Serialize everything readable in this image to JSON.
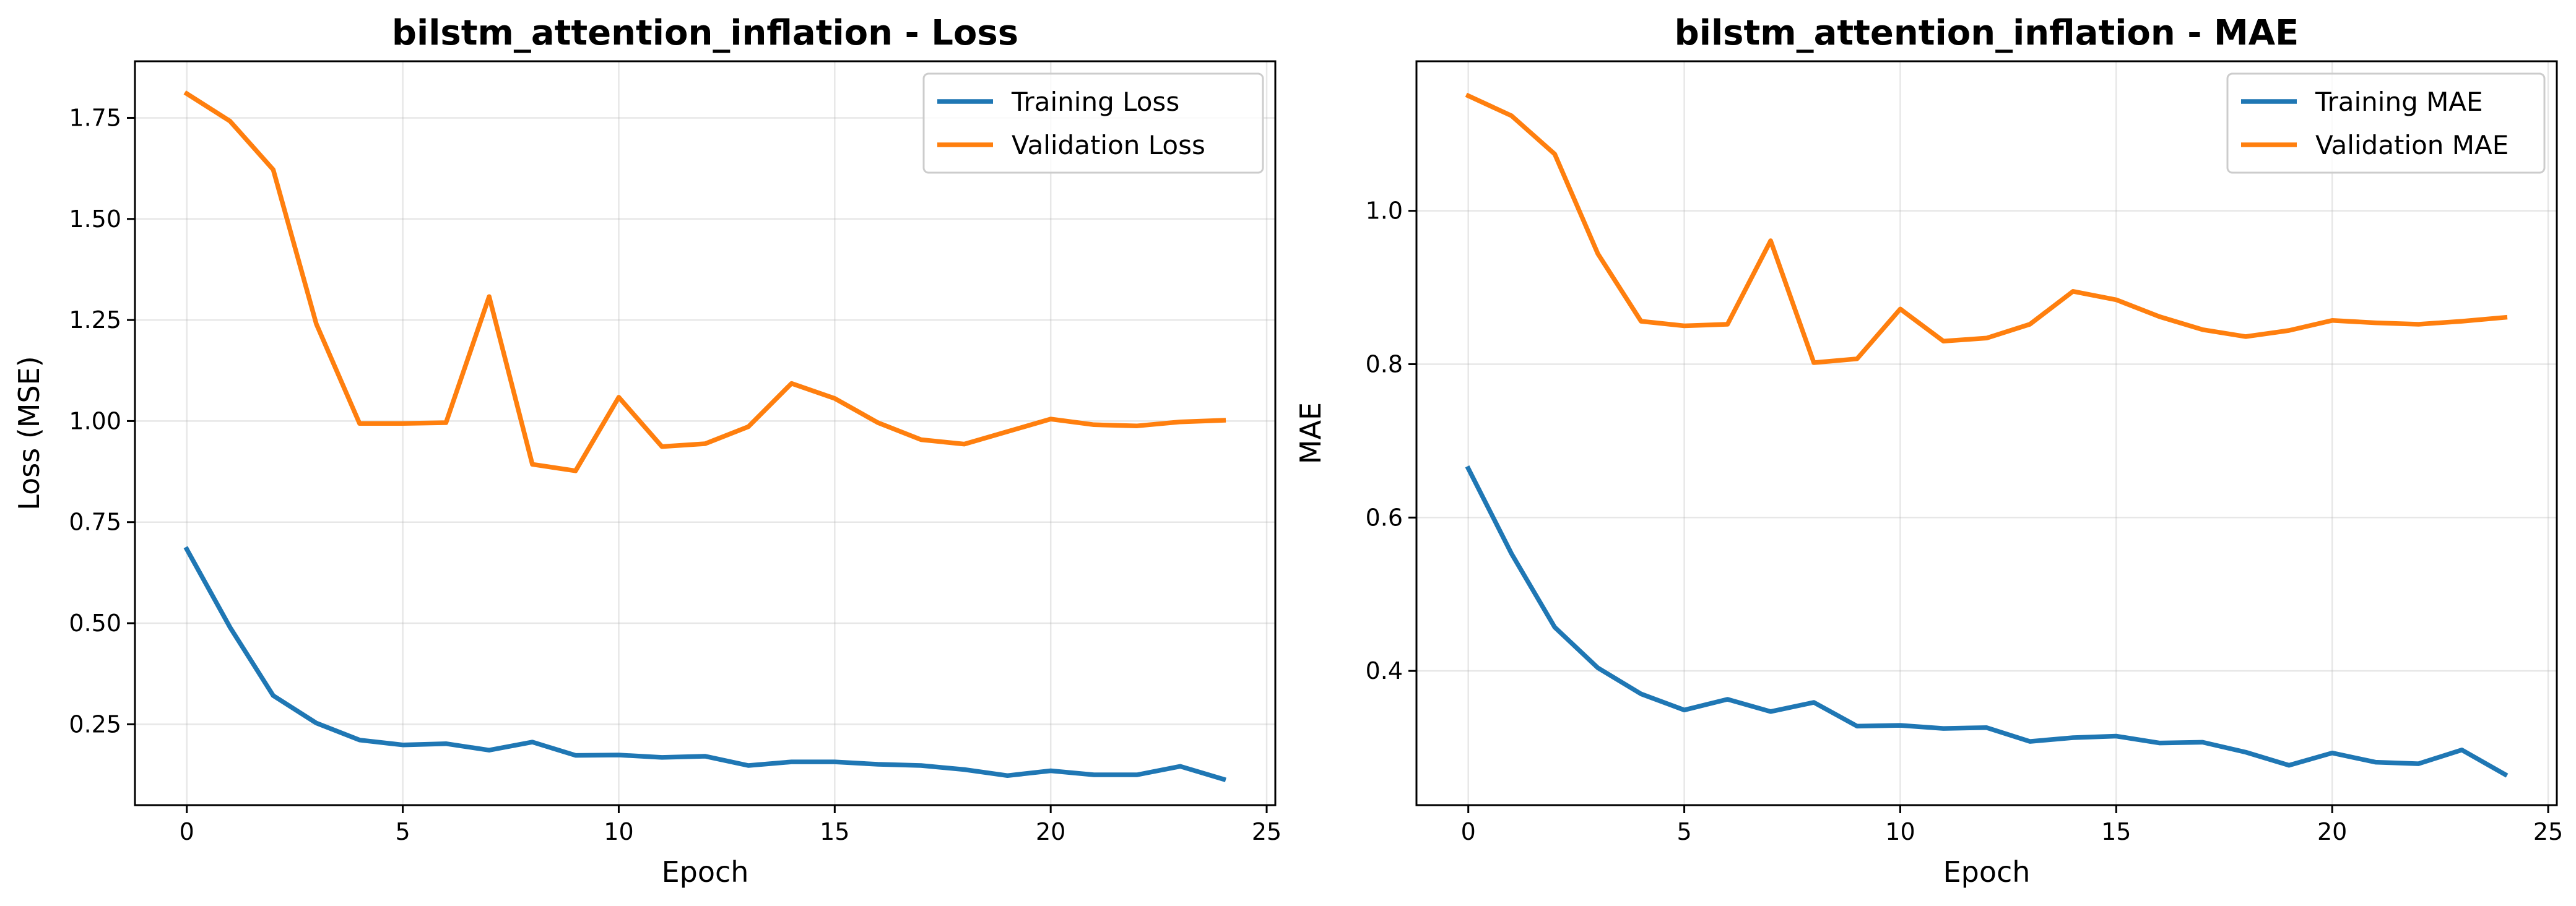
{
  "chart_data": [
    {
      "type": "line",
      "title": "bilstm_attention_inflation - Loss",
      "xlabel": "Epoch",
      "ylabel": "Loss (MSE)",
      "xlim": [
        -1.2,
        25.2
      ],
      "ylim": [
        0.05,
        1.89
      ],
      "xticks": [
        0,
        5,
        10,
        15,
        20,
        25
      ],
      "yticks": [
        0.25,
        0.5,
        0.75,
        1.0,
        1.25,
        1.5,
        1.75
      ],
      "ytick_labels": [
        "0.25",
        "0.50",
        "0.75",
        "1.00",
        "1.25",
        "1.50",
        "1.75"
      ],
      "grid": true,
      "legend_position": "upper right",
      "x": [
        0,
        1,
        2,
        3,
        4,
        5,
        6,
        7,
        8,
        9,
        10,
        11,
        12,
        13,
        14,
        15,
        16,
        17,
        18,
        19,
        20,
        21,
        22,
        23,
        24
      ],
      "series": [
        {
          "name": "Training Loss",
          "color": "#1f77b4",
          "values": [
            0.683,
            0.49,
            0.321,
            0.253,
            0.211,
            0.199,
            0.202,
            0.186,
            0.206,
            0.173,
            0.174,
            0.168,
            0.171,
            0.148,
            0.157,
            0.157,
            0.151,
            0.148,
            0.138,
            0.123,
            0.135,
            0.125,
            0.125,
            0.146,
            0.114
          ]
        },
        {
          "name": "Validation Loss",
          "color": "#ff7f0e",
          "values": [
            1.81,
            1.742,
            1.622,
            1.24,
            0.994,
            0.994,
            0.996,
            1.308,
            0.893,
            0.877,
            1.059,
            0.937,
            0.944,
            0.986,
            1.093,
            1.056,
            0.996,
            0.954,
            0.943,
            0.974,
            1.005,
            0.991,
            0.988,
            0.998,
            1.002
          ]
        }
      ]
    },
    {
      "type": "line",
      "title": "bilstm_attention_inflation - MAE",
      "xlabel": "Epoch",
      "ylabel": "MAE",
      "xlim": [
        -1.2,
        25.2
      ],
      "ylim": [
        0.225,
        1.195
      ],
      "xticks": [
        0,
        5,
        10,
        15,
        20,
        25
      ],
      "yticks": [
        0.4,
        0.6,
        0.8,
        1.0
      ],
      "ytick_labels": [
        "0.4",
        "0.6",
        "0.8",
        "1.0"
      ],
      "grid": true,
      "legend_position": "upper right",
      "x": [
        0,
        1,
        2,
        3,
        4,
        5,
        6,
        7,
        8,
        9,
        10,
        11,
        12,
        13,
        14,
        15,
        16,
        17,
        18,
        19,
        20,
        21,
        22,
        23,
        24
      ],
      "series": [
        {
          "name": "Training MAE",
          "color": "#1f77b4",
          "values": [
            0.664,
            0.553,
            0.457,
            0.404,
            0.37,
            0.349,
            0.363,
            0.347,
            0.359,
            0.328,
            0.329,
            0.325,
            0.326,
            0.308,
            0.313,
            0.315,
            0.306,
            0.307,
            0.294,
            0.277,
            0.293,
            0.281,
            0.279,
            0.297,
            0.265
          ]
        },
        {
          "name": "Validation MAE",
          "color": "#ff7f0e",
          "values": [
            1.15,
            1.124,
            1.074,
            0.944,
            0.856,
            0.85,
            0.852,
            0.961,
            0.802,
            0.807,
            0.872,
            0.83,
            0.834,
            0.852,
            0.895,
            0.884,
            0.862,
            0.845,
            0.836,
            0.844,
            0.857,
            0.854,
            0.852,
            0.856,
            0.861
          ]
        }
      ]
    }
  ]
}
